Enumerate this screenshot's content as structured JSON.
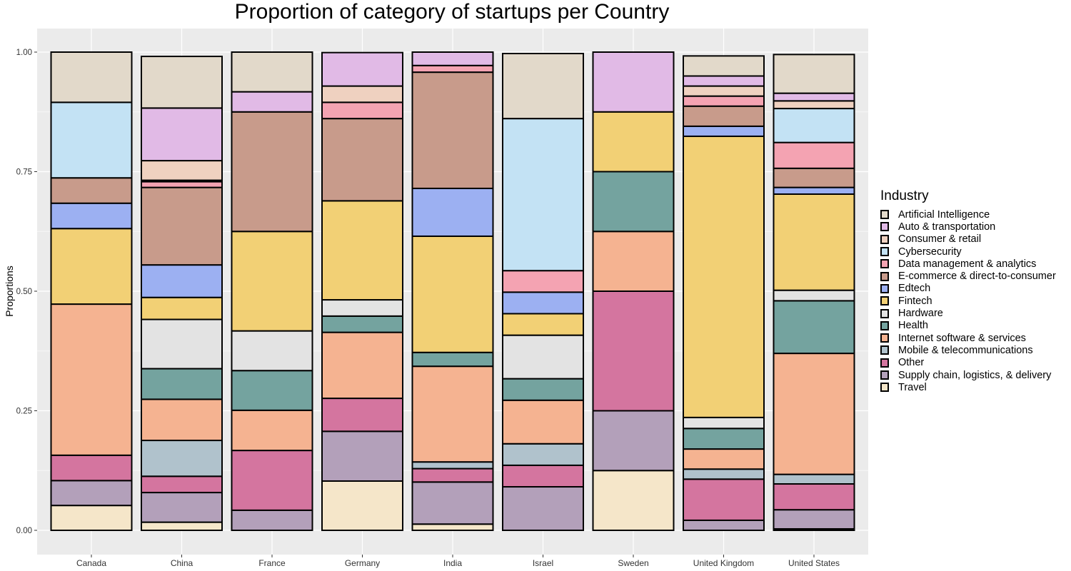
{
  "chart_data": {
    "type": "bar",
    "stacked": true,
    "title": "Proportion of category of startups per Country",
    "xlabel": "",
    "ylabel": "Proportions",
    "ylim": [
      0,
      1
    ],
    "y_ticks": [
      "0.00",
      "0.25",
      "0.50",
      "0.75",
      "1.00"
    ],
    "legend_title": "Industry",
    "legend_position": "right",
    "grid": true,
    "categories": [
      "Canada",
      "China",
      "France",
      "Germany",
      "India",
      "Israel",
      "Sweden",
      "United Kingdom",
      "United States"
    ],
    "series": [
      {
        "name": "Artificial Intelligence",
        "color": "#e2d9ca",
        "values": [
          0.105,
          0.108,
          0.083,
          0.0,
          0.0,
          0.136,
          0.0,
          0.042,
          0.081
        ]
      },
      {
        "name": "Auto & transportation",
        "color": "#e1bae6",
        "values": [
          0.0,
          0.11,
          0.042,
          0.07,
          0.028,
          0.0,
          0.125,
          0.021,
          0.016
        ]
      },
      {
        "name": "Consumer & retail",
        "color": "#efd1c0",
        "values": [
          0.0,
          0.041,
          0.0,
          0.034,
          0.0,
          0.0,
          0.0,
          0.021,
          0.016
        ]
      },
      {
        "name": "Cybersecurity",
        "color": "#c3e2f4",
        "values": [
          0.158,
          0.003,
          0.0,
          0.0,
          0.0,
          0.318,
          0.0,
          0.0,
          0.071
        ]
      },
      {
        "name": "Data management & analytics",
        "color": "#f4a3b2",
        "values": [
          0.0,
          0.012,
          0.0,
          0.034,
          0.014,
          0.045,
          0.0,
          0.021,
          0.054
        ]
      },
      {
        "name": "E-commerce & direct-to-consumer",
        "color": "#c89b8b",
        "values": [
          0.053,
          0.162,
          0.25,
          0.172,
          0.243,
          0.0,
          0.0,
          0.042,
          0.04
        ]
      },
      {
        "name": "Edtech",
        "color": "#9cb0f2",
        "values": [
          0.053,
          0.068,
          0.0,
          0.0,
          0.1,
          0.045,
          0.0,
          0.021,
          0.014
        ]
      },
      {
        "name": "Fintech",
        "color": "#f2d075",
        "values": [
          0.158,
          0.046,
          0.208,
          0.207,
          0.243,
          0.045,
          0.125,
          0.588,
          0.201
        ]
      },
      {
        "name": "Hardware",
        "color": "#e3e3e3",
        "values": [
          0.0,
          0.103,
          0.083,
          0.034,
          0.0,
          0.091,
          0.0,
          0.023,
          0.022
        ]
      },
      {
        "name": "Health",
        "color": "#74a39f",
        "values": [
          0.0,
          0.064,
          0.083,
          0.034,
          0.029,
          0.045,
          0.125,
          0.043,
          0.11
        ]
      },
      {
        "name": "Internet software & services",
        "color": "#f5b391",
        "values": [
          0.316,
          0.086,
          0.084,
          0.138,
          0.2,
          0.091,
          0.125,
          0.042,
          0.253
        ]
      },
      {
        "name": "Mobile & telecommunications",
        "color": "#b0c2cc",
        "values": [
          0.0,
          0.075,
          0.0,
          0.0,
          0.014,
          0.045,
          0.0,
          0.021,
          0.02
        ]
      },
      {
        "name": "Other",
        "color": "#d4759f",
        "values": [
          0.053,
          0.034,
          0.125,
          0.069,
          0.028,
          0.045,
          0.25,
          0.086,
          0.054
        ]
      },
      {
        "name": "Supply chain, logistics, & delivery",
        "color": "#b3a0ba",
        "values": [
          0.052,
          0.062,
          0.042,
          0.104,
          0.088,
          0.091,
          0.125,
          0.021,
          0.04
        ]
      },
      {
        "name": "Travel",
        "color": "#f5e6c9",
        "values": [
          0.052,
          0.017,
          0.0,
          0.103,
          0.013,
          0.0,
          0.125,
          0.0,
          0.003
        ]
      }
    ]
  }
}
